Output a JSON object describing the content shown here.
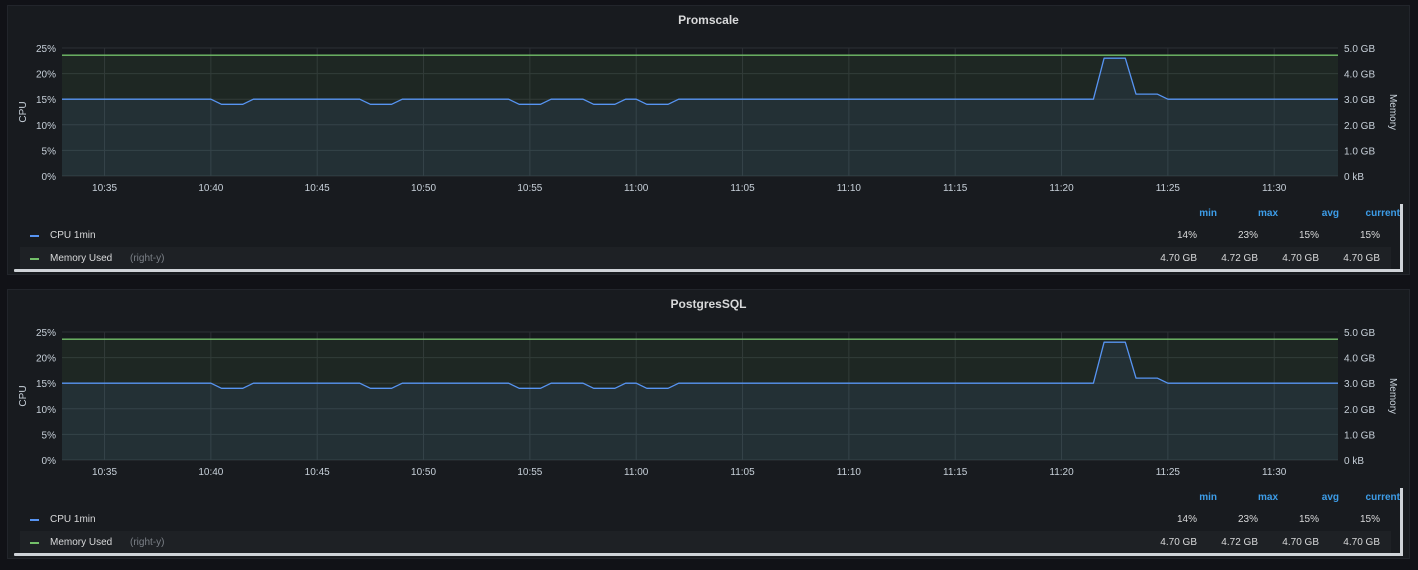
{
  "chart_data": [
    {
      "type": "line",
      "title": "Promscale",
      "ylabel": "CPU",
      "ylabel_right": "Memory",
      "ylim": [
        0,
        25
      ],
      "y_ticks": [
        "0%",
        "5%",
        "10%",
        "15%",
        "20%",
        "25%"
      ],
      "ylim_right": [
        0,
        5
      ],
      "y_right_ticks": [
        "0 kB",
        "1.0 GB",
        "2.0 GB",
        "3.0 GB",
        "4.0 GB",
        "5.0 GB"
      ],
      "x_ticks": [
        "10:35",
        "10:40",
        "10:45",
        "10:50",
        "10:55",
        "11:00",
        "11:05",
        "11:10",
        "11:15",
        "11:20",
        "11:25",
        "11:30"
      ],
      "grid": true,
      "series": [
        {
          "name": "CPU 1min",
          "axis": "left",
          "color": "#5794f2",
          "points": [
            [
              "10:33",
              15
            ],
            [
              "10:40",
              15
            ],
            [
              "10:40.5",
              14
            ],
            [
              "10:41.5",
              14
            ],
            [
              "10:42",
              15
            ],
            [
              "10:47",
              15
            ],
            [
              "10:47.5",
              14
            ],
            [
              "10:48.5",
              14
            ],
            [
              "10:49",
              15
            ],
            [
              "10:54",
              15
            ],
            [
              "10:54.5",
              14
            ],
            [
              "10:55.5",
              14
            ],
            [
              "10:56",
              15
            ],
            [
              "10:57.5",
              15
            ],
            [
              "10:58",
              14
            ],
            [
              "10:59",
              14
            ],
            [
              "10:59.5",
              15
            ],
            [
              "11:00",
              15
            ],
            [
              "11:00.5",
              14
            ],
            [
              "11:01.5",
              14
            ],
            [
              "11:02",
              15
            ],
            [
              "11:21.5",
              15
            ],
            [
              "11:22",
              23
            ],
            [
              "11:23",
              23
            ],
            [
              "11:23.5",
              16
            ],
            [
              "11:24.5",
              16
            ],
            [
              "11:25",
              15
            ],
            [
              "11:33",
              15
            ]
          ]
        },
        {
          "name": "Memory Used",
          "axis": "right",
          "color": "#73bf69",
          "points": [
            [
              "10:33",
              4.72
            ],
            [
              "11:33",
              4.72
            ]
          ]
        }
      ],
      "legend": {
        "columns": [
          "min",
          "max",
          "avg",
          "current"
        ],
        "rows": [
          {
            "name": "CPU 1min",
            "suffix": "",
            "color": "#5794f2",
            "values": [
              "14%",
              "23%",
              "15%",
              "15%"
            ]
          },
          {
            "name": "Memory Used",
            "suffix": "(right-y)",
            "color": "#73bf69",
            "values": [
              "4.70 GB",
              "4.72 GB",
              "4.70 GB",
              "4.70 GB"
            ]
          }
        ]
      }
    },
    {
      "type": "line",
      "title": "PostgresSQL",
      "ylabel": "CPU",
      "ylabel_right": "Memory",
      "ylim": [
        0,
        25
      ],
      "y_ticks": [
        "0%",
        "5%",
        "10%",
        "15%",
        "20%",
        "25%"
      ],
      "ylim_right": [
        0,
        5
      ],
      "y_right_ticks": [
        "0 kB",
        "1.0 GB",
        "2.0 GB",
        "3.0 GB",
        "4.0 GB",
        "5.0 GB"
      ],
      "x_ticks": [
        "10:35",
        "10:40",
        "10:45",
        "10:50",
        "10:55",
        "11:00",
        "11:05",
        "11:10",
        "11:15",
        "11:20",
        "11:25",
        "11:30"
      ],
      "grid": true,
      "series": [
        {
          "name": "CPU 1min",
          "axis": "left",
          "color": "#5794f2",
          "points": [
            [
              "10:33",
              15
            ],
            [
              "10:40",
              15
            ],
            [
              "10:40.5",
              14
            ],
            [
              "10:41.5",
              14
            ],
            [
              "10:42",
              15
            ],
            [
              "10:47",
              15
            ],
            [
              "10:47.5",
              14
            ],
            [
              "10:48.5",
              14
            ],
            [
              "10:49",
              15
            ],
            [
              "10:54",
              15
            ],
            [
              "10:54.5",
              14
            ],
            [
              "10:55.5",
              14
            ],
            [
              "10:56",
              15
            ],
            [
              "10:57.5",
              15
            ],
            [
              "10:58",
              14
            ],
            [
              "10:59",
              14
            ],
            [
              "10:59.5",
              15
            ],
            [
              "11:00",
              15
            ],
            [
              "11:00.5",
              14
            ],
            [
              "11:01.5",
              14
            ],
            [
              "11:02",
              15
            ],
            [
              "11:21.5",
              15
            ],
            [
              "11:22",
              23
            ],
            [
              "11:23",
              23
            ],
            [
              "11:23.5",
              16
            ],
            [
              "11:24.5",
              16
            ],
            [
              "11:25",
              15
            ],
            [
              "11:33",
              15
            ]
          ]
        },
        {
          "name": "Memory Used",
          "axis": "right",
          "color": "#73bf69",
          "points": [
            [
              "10:33",
              4.72
            ],
            [
              "11:33",
              4.72
            ]
          ]
        }
      ],
      "legend": {
        "columns": [
          "min",
          "max",
          "avg",
          "current"
        ],
        "rows": [
          {
            "name": "CPU 1min",
            "suffix": "",
            "color": "#5794f2",
            "values": [
              "14%",
              "23%",
              "15%",
              "15%"
            ]
          },
          {
            "name": "Memory Used",
            "suffix": "(right-y)",
            "color": "#73bf69",
            "values": [
              "4.70 GB",
              "4.72 GB",
              "4.70 GB",
              "4.70 GB"
            ]
          }
        ]
      }
    }
  ]
}
